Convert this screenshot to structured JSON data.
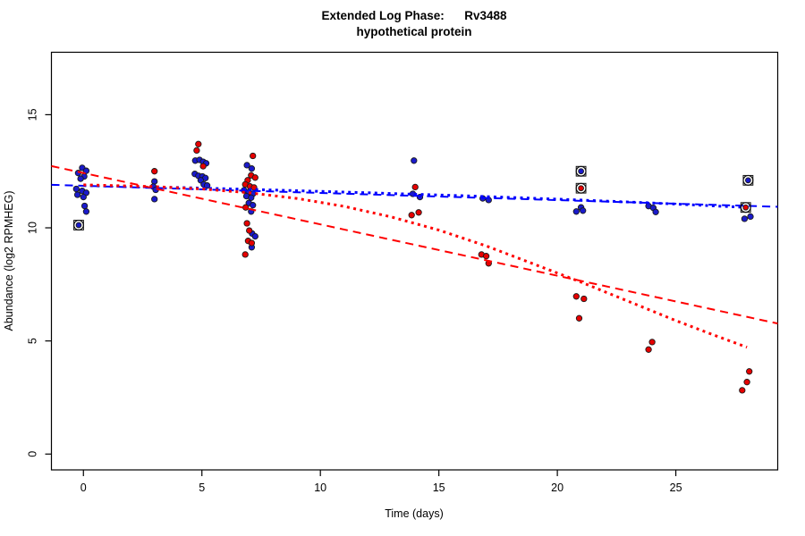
{
  "chart_data": {
    "type": "scatter",
    "title": "Extended Log Phase:      Rv3488",
    "subtitle": "hypothetical protein",
    "xlabel": "Time  (days)",
    "ylabel": "Abundance  (log2 RPMHEG)",
    "xlim": [
      -1.35,
      29.3
    ],
    "ylim": [
      -0.7,
      17.76
    ],
    "x_ticks": [
      0,
      5,
      10,
      15,
      20,
      25
    ],
    "y_ticks": [
      0,
      5,
      10,
      15
    ],
    "grid": false,
    "legend": "none",
    "point_colors": {
      "blue": "#1a1acc",
      "red": "#e60000",
      "outline": "#1a1a1a"
    },
    "line_colors": {
      "blue": "#0000ff",
      "red": "#ff0000"
    },
    "series": [
      {
        "name": "blue-points",
        "color": "#1a1acc",
        "points": [
          [
            -0.05,
            12.65
          ],
          [
            0.12,
            12.52
          ],
          [
            -0.22,
            12.42
          ],
          [
            0.03,
            12.27
          ],
          [
            -0.12,
            12.17
          ],
          [
            -0.3,
            11.72
          ],
          [
            -0.05,
            11.63
          ],
          [
            0.12,
            11.55
          ],
          [
            -0.25,
            11.46
          ],
          [
            0.0,
            11.36
          ],
          [
            0.05,
            10.97
          ],
          [
            0.12,
            10.72
          ],
          [
            3.0,
            12.05
          ],
          [
            2.95,
            11.82
          ],
          [
            3.05,
            11.68
          ],
          [
            3.0,
            11.27
          ],
          [
            4.72,
            12.97
          ],
          [
            4.9,
            13.0
          ],
          [
            5.05,
            12.92
          ],
          [
            5.18,
            12.85
          ],
          [
            4.7,
            12.38
          ],
          [
            4.85,
            12.3
          ],
          [
            5.02,
            12.27
          ],
          [
            5.15,
            12.2
          ],
          [
            4.95,
            12.1
          ],
          [
            5.08,
            11.92
          ],
          [
            5.22,
            11.87
          ],
          [
            6.9,
            12.77
          ],
          [
            7.1,
            12.62
          ],
          [
            6.78,
            11.66
          ],
          [
            6.98,
            11.58
          ],
          [
            7.15,
            11.5
          ],
          [
            6.88,
            11.4
          ],
          [
            7.08,
            11.33
          ],
          [
            6.98,
            11.1
          ],
          [
            7.15,
            11.0
          ],
          [
            7.08,
            10.72
          ],
          [
            7.12,
            9.75
          ],
          [
            7.25,
            9.62
          ],
          [
            7.1,
            9.14
          ],
          [
            13.95,
            12.97
          ],
          [
            13.9,
            11.5
          ],
          [
            14.2,
            11.36
          ],
          [
            16.85,
            11.3
          ],
          [
            17.1,
            11.23
          ],
          [
            20.8,
            10.72
          ],
          [
            21.0,
            10.9
          ],
          [
            21.08,
            10.76
          ],
          [
            23.85,
            10.96
          ],
          [
            24.05,
            10.88
          ],
          [
            24.15,
            10.7
          ],
          [
            27.9,
            10.4
          ],
          [
            28.15,
            10.5
          ]
        ]
      },
      {
        "name": "red-points",
        "color": "#e60000",
        "points": [
          [
            3.0,
            12.5
          ],
          [
            4.85,
            13.7
          ],
          [
            4.78,
            13.42
          ],
          [
            5.05,
            12.72
          ],
          [
            7.15,
            13.18
          ],
          [
            7.08,
            12.32
          ],
          [
            7.25,
            12.22
          ],
          [
            6.93,
            12.1
          ],
          [
            6.83,
            11.92
          ],
          [
            7.03,
            11.83
          ],
          [
            7.2,
            11.78
          ],
          [
            6.85,
            10.9
          ],
          [
            6.9,
            10.2
          ],
          [
            7.0,
            9.88
          ],
          [
            6.95,
            9.42
          ],
          [
            7.1,
            9.33
          ],
          [
            6.83,
            8.82
          ],
          [
            14.0,
            11.8
          ],
          [
            13.85,
            10.56
          ],
          [
            14.15,
            10.68
          ],
          [
            16.8,
            8.82
          ],
          [
            17.0,
            8.75
          ],
          [
            17.1,
            8.43
          ],
          [
            20.8,
            6.97
          ],
          [
            21.12,
            6.86
          ],
          [
            20.92,
            6.0
          ],
          [
            24.0,
            4.95
          ],
          [
            23.85,
            4.62
          ],
          [
            28.1,
            3.65
          ],
          [
            28.0,
            3.18
          ],
          [
            27.8,
            2.82
          ]
        ]
      }
    ],
    "highlighted_points": [
      {
        "x": -0.2,
        "y": 10.12,
        "series": "blue"
      },
      {
        "x": 21.0,
        "y": 12.5,
        "series": "blue"
      },
      {
        "x": 21.0,
        "y": 11.75,
        "series": "red"
      },
      {
        "x": 28.05,
        "y": 12.1,
        "series": "blue"
      },
      {
        "x": 27.95,
        "y": 10.9,
        "series": "red"
      }
    ],
    "fit_lines": [
      {
        "name": "blue-dashed-linear-fit",
        "series": "blue",
        "style": "dashed",
        "x1": -1.35,
        "y1": 11.9,
        "x2": 29.3,
        "y2": 10.93
      },
      {
        "name": "red-dashed-linear-fit",
        "series": "red",
        "style": "dashed",
        "x1": -1.35,
        "y1": 12.73,
        "x2": 29.3,
        "y2": 5.77
      }
    ],
    "fit_curves": [
      {
        "name": "blue-dotted-fit",
        "series": "blue",
        "style": "dotted",
        "points": [
          [
            0,
            11.87
          ],
          [
            4,
            11.78
          ],
          [
            8,
            11.67
          ],
          [
            12,
            11.55
          ],
          [
            16,
            11.42
          ],
          [
            20,
            11.27
          ],
          [
            24,
            11.1
          ],
          [
            28,
            10.9
          ]
        ]
      },
      {
        "name": "red-dotted-fit",
        "series": "red",
        "style": "dotted",
        "points": [
          [
            0,
            11.9
          ],
          [
            3,
            11.82
          ],
          [
            5,
            11.72
          ],
          [
            7,
            11.55
          ],
          [
            9,
            11.3
          ],
          [
            11,
            10.95
          ],
          [
            13,
            10.48
          ],
          [
            15,
            9.9
          ],
          [
            17,
            9.2
          ],
          [
            19,
            8.4
          ],
          [
            21,
            7.6
          ],
          [
            23,
            6.75
          ],
          [
            25,
            5.9
          ],
          [
            26.5,
            5.3
          ],
          [
            28,
            4.72
          ]
        ]
      }
    ]
  }
}
